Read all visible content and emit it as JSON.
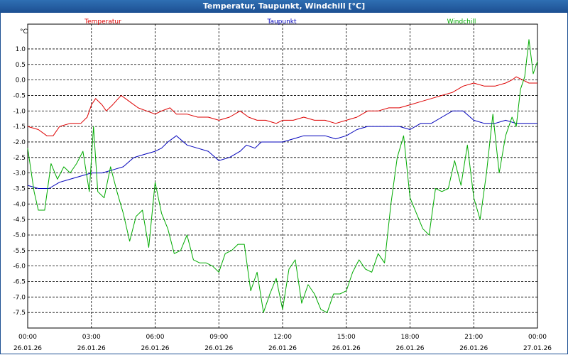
{
  "window": {
    "title": "Temperatur, Taupunkt, Windchill [°C]"
  },
  "chart_data": {
    "type": "line",
    "title": "Temperatur, Taupunkt, Windchill [°C]",
    "ylabel": "°C",
    "xlabel": "",
    "ylim": [
      -8.0,
      1.8
    ],
    "xlim": [
      0,
      24
    ],
    "grid": true,
    "yticks": [
      "1.0",
      "0.5",
      "0.0",
      "-0.5",
      "-1.0",
      "-1.5",
      "-2.0",
      "-2.5",
      "-3.0",
      "-3.5",
      "-4.0",
      "-4.5",
      "-5.0",
      "-5.5",
      "-6.0",
      "-6.5",
      "-7.0",
      "-7.5"
    ],
    "ytick_values": [
      1.0,
      0.5,
      0.0,
      -0.5,
      -1.0,
      -1.5,
      -2.0,
      -2.5,
      -3.0,
      -3.5,
      -4.0,
      -4.5,
      -5.0,
      -5.5,
      -6.0,
      -6.5,
      -7.0,
      -7.5
    ],
    "xticks": [
      {
        "time": "00:00",
        "date": "26.01.26",
        "hour": 0
      },
      {
        "time": "03:00",
        "date": "26.01.26",
        "hour": 3
      },
      {
        "time": "06:00",
        "date": "26.01.26",
        "hour": 6
      },
      {
        "time": "09:00",
        "date": "26.01.26",
        "hour": 9
      },
      {
        "time": "12:00",
        "date": "26.01.26",
        "hour": 12
      },
      {
        "time": "15:00",
        "date": "26.01.26",
        "hour": 15
      },
      {
        "time": "18:00",
        "date": "26.01.26",
        "hour": 18
      },
      {
        "time": "21:00",
        "date": "26.01.26",
        "hour": 21
      },
      {
        "time": "00:00",
        "date": "27.01.26",
        "hour": 24
      }
    ],
    "series": [
      {
        "name": "Temperatur",
        "color": "#dd0000",
        "x": [
          0,
          0.5,
          0.9,
          1.2,
          1.5,
          2.0,
          2.5,
          2.8,
          3.0,
          3.2,
          3.5,
          3.7,
          4.0,
          4.4,
          4.8,
          5.2,
          5.6,
          6.0,
          6.3,
          6.7,
          7.0,
          7.5,
          8.0,
          8.5,
          9.0,
          9.5,
          10.0,
          10.4,
          10.8,
          11.2,
          11.7,
          12.0,
          12.5,
          13.0,
          13.5,
          14.0,
          14.5,
          15.0,
          15.5,
          16.0,
          16.5,
          17.0,
          17.5,
          18.0,
          18.5,
          19.0,
          19.5,
          20.0,
          20.5,
          21.0,
          21.5,
          22.0,
          22.5,
          22.8,
          23.0,
          23.3,
          23.6,
          24.0
        ],
        "values": [
          -1.5,
          -1.6,
          -1.8,
          -1.8,
          -1.5,
          -1.4,
          -1.4,
          -1.2,
          -0.8,
          -0.6,
          -0.8,
          -1.0,
          -0.8,
          -0.5,
          -0.7,
          -0.9,
          -1.0,
          -1.1,
          -1.0,
          -0.9,
          -1.1,
          -1.1,
          -1.2,
          -1.2,
          -1.3,
          -1.2,
          -1.0,
          -1.2,
          -1.3,
          -1.3,
          -1.4,
          -1.3,
          -1.3,
          -1.2,
          -1.3,
          -1.3,
          -1.4,
          -1.3,
          -1.2,
          -1.0,
          -1.0,
          -0.9,
          -0.9,
          -0.8,
          -0.7,
          -0.6,
          -0.5,
          -0.4,
          -0.2,
          -0.1,
          -0.2,
          -0.2,
          -0.1,
          0.0,
          0.1,
          0.0,
          -0.1,
          -0.1
        ]
      },
      {
        "name": "Taupunkt",
        "color": "#0000bb",
        "x": [
          0,
          0.5,
          1.0,
          1.5,
          2.0,
          2.5,
          3.0,
          3.5,
          4.0,
          4.5,
          5.0,
          5.5,
          6.0,
          6.3,
          6.6,
          7.0,
          7.5,
          8.0,
          8.5,
          9.0,
          9.5,
          10.0,
          10.3,
          10.7,
          11.0,
          11.5,
          12.0,
          12.5,
          13.0,
          13.5,
          14.0,
          14.5,
          15.0,
          15.5,
          16.0,
          16.5,
          17.0,
          17.5,
          18.0,
          18.5,
          19.0,
          19.5,
          20.0,
          20.5,
          21.0,
          21.5,
          22.0,
          22.5,
          23.0,
          23.5,
          24.0
        ],
        "values": [
          -3.4,
          -3.5,
          -3.5,
          -3.3,
          -3.2,
          -3.1,
          -3.0,
          -3.0,
          -2.9,
          -2.8,
          -2.5,
          -2.4,
          -2.3,
          -2.2,
          -2.0,
          -1.8,
          -2.1,
          -2.2,
          -2.3,
          -2.6,
          -2.5,
          -2.3,
          -2.1,
          -2.2,
          -2.0,
          -2.0,
          -2.0,
          -1.9,
          -1.8,
          -1.8,
          -1.8,
          -1.9,
          -1.8,
          -1.6,
          -1.5,
          -1.5,
          -1.5,
          -1.5,
          -1.6,
          -1.4,
          -1.4,
          -1.2,
          -1.0,
          -1.0,
          -1.3,
          -1.4,
          -1.4,
          -1.3,
          -1.4,
          -1.4,
          -1.4
        ]
      },
      {
        "name": "Windchill",
        "color": "#00aa00",
        "x": [
          0,
          0.3,
          0.5,
          0.8,
          1.1,
          1.4,
          1.7,
          2.0,
          2.3,
          2.6,
          2.9,
          3.1,
          3.3,
          3.6,
          3.9,
          4.2,
          4.5,
          4.8,
          5.1,
          5.4,
          5.7,
          6.0,
          6.3,
          6.6,
          6.9,
          7.2,
          7.5,
          7.8,
          8.1,
          8.4,
          8.7,
          9.0,
          9.3,
          9.6,
          9.9,
          10.2,
          10.5,
          10.8,
          11.1,
          11.4,
          11.7,
          12.0,
          12.3,
          12.6,
          12.9,
          13.2,
          13.5,
          13.8,
          14.1,
          14.4,
          14.7,
          15.0,
          15.3,
          15.6,
          15.9,
          16.2,
          16.5,
          16.8,
          17.1,
          17.4,
          17.7,
          18.0,
          18.3,
          18.6,
          18.9,
          19.2,
          19.5,
          19.8,
          20.1,
          20.4,
          20.7,
          21.0,
          21.3,
          21.6,
          21.9,
          22.2,
          22.5,
          22.8,
          23.0,
          23.2,
          23.4,
          23.6,
          23.8,
          24.0
        ],
        "values": [
          -2.2,
          -3.6,
          -4.2,
          -4.2,
          -2.7,
          -3.2,
          -2.8,
          -3.0,
          -2.7,
          -2.3,
          -3.6,
          -1.5,
          -3.6,
          -3.8,
          -2.8,
          -3.6,
          -4.3,
          -5.2,
          -4.4,
          -4.2,
          -5.4,
          -3.3,
          -4.3,
          -4.8,
          -5.6,
          -5.5,
          -5.0,
          -5.8,
          -5.9,
          -5.9,
          -6.0,
          -6.2,
          -5.6,
          -5.5,
          -5.3,
          -5.3,
          -6.8,
          -6.2,
          -7.5,
          -6.9,
          -6.4,
          -7.4,
          -6.1,
          -5.8,
          -7.2,
          -6.6,
          -6.9,
          -7.4,
          -7.5,
          -6.9,
          -6.9,
          -6.8,
          -6.2,
          -5.8,
          -6.1,
          -6.2,
          -5.6,
          -5.9,
          -4.0,
          -2.5,
          -1.8,
          -3.8,
          -4.3,
          -4.8,
          -5.0,
          -3.5,
          -3.6,
          -3.5,
          -2.6,
          -3.4,
          -2.1,
          -3.8,
          -4.5,
          -3.0,
          -1.1,
          -3.0,
          -1.8,
          -1.2,
          -1.5,
          -0.3,
          0.1,
          1.3,
          0.2,
          0.6
        ]
      }
    ]
  }
}
